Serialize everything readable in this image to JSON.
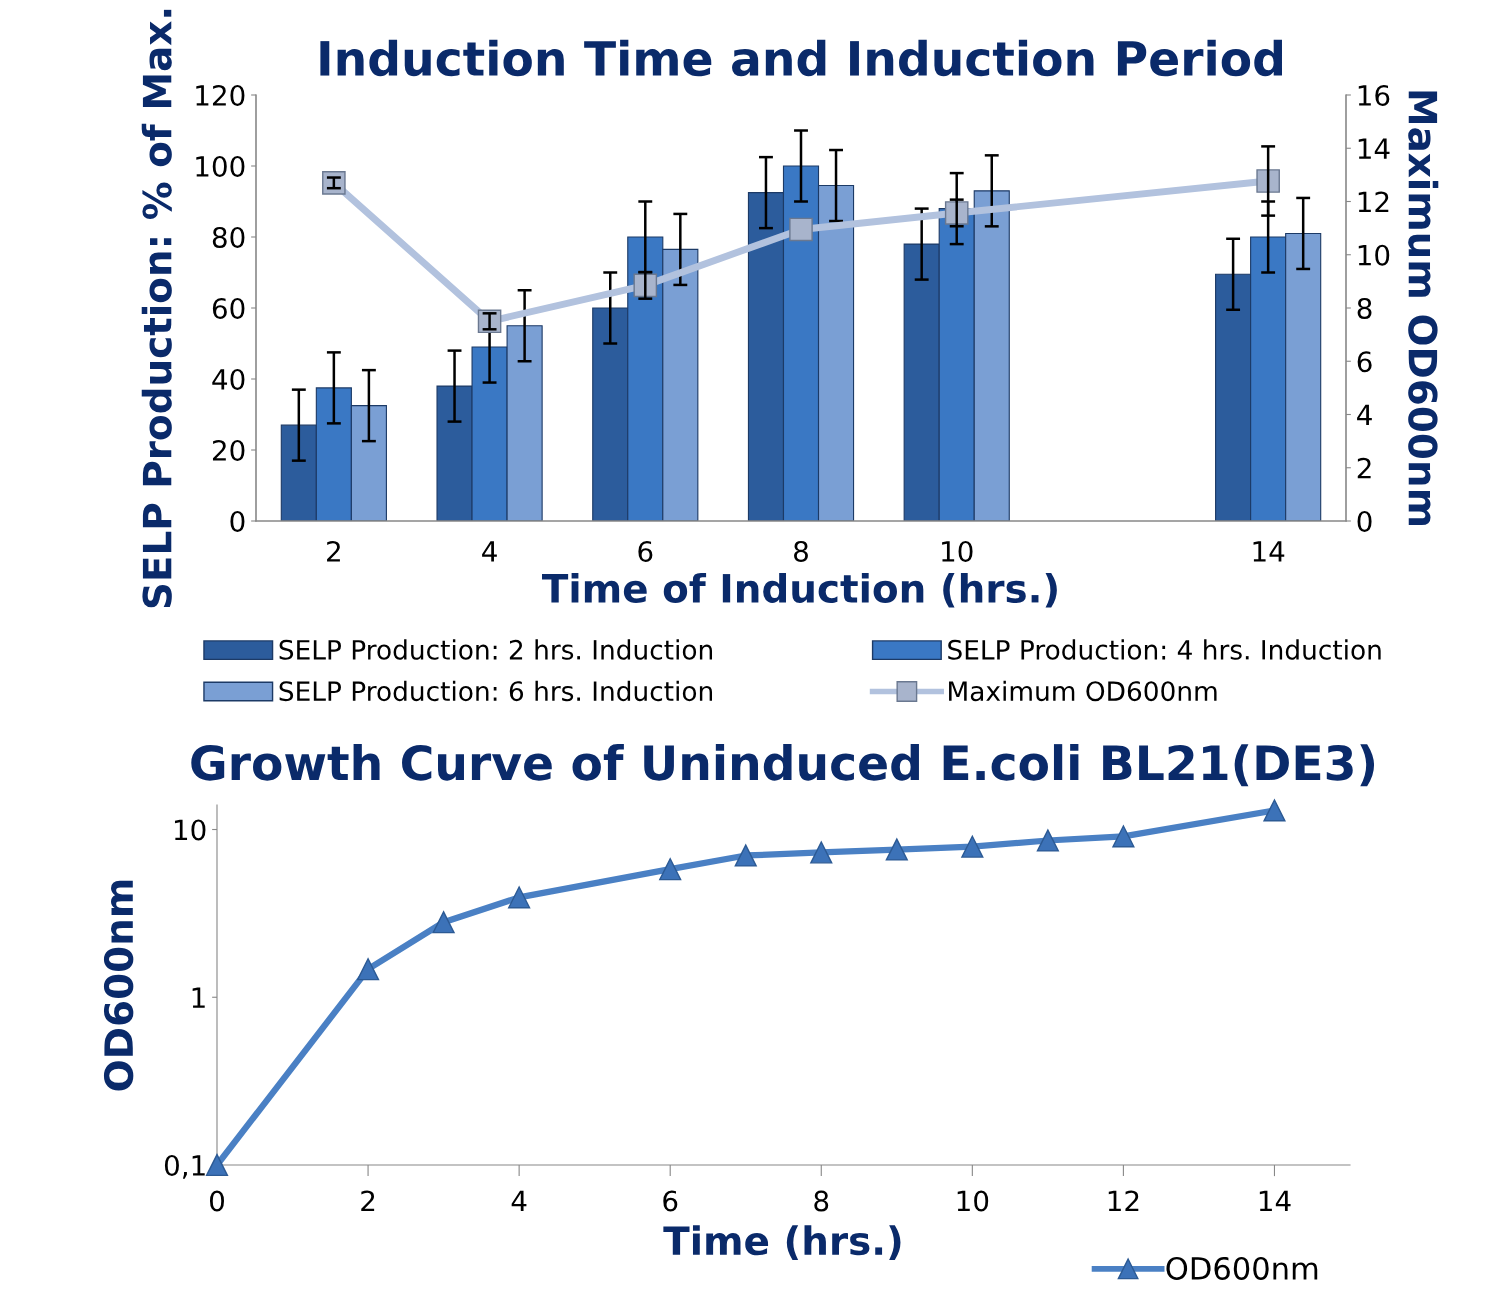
{
  "chart_data": [
    {
      "type": "bar",
      "title": "Induction Time and Induction Period",
      "xlabel": "Time of Induction (hrs.)",
      "ylabel": "SELP Production: % of Max.",
      "y2label": "Maximum OD600nm",
      "categories": [
        "2",
        "4",
        "6",
        "8",
        "10",
        null,
        "14"
      ],
      "ylim": [
        0,
        120
      ],
      "yticks": [
        0,
        20,
        40,
        60,
        80,
        100,
        120
      ],
      "y2lim": [
        0,
        16
      ],
      "y2ticks": [
        0,
        2,
        4,
        6,
        8,
        10,
        12,
        14,
        16
      ],
      "grid": false,
      "legend": "bottom",
      "series": [
        {
          "name": "SELP Production: 2 hrs. Induction",
          "color": "#2c5c9c",
          "values": [
            27,
            38,
            60,
            92.5,
            78,
            null,
            69.5
          ],
          "errors": [
            10,
            10,
            10,
            10,
            10,
            null,
            10
          ]
        },
        {
          "name": "SELP Production: 4 hrs. Induction",
          "color": "#3a78c4",
          "values": [
            37.5,
            49,
            80,
            100,
            88,
            null,
            80
          ],
          "errors": [
            10,
            10,
            10,
            10,
            10,
            null,
            10
          ]
        },
        {
          "name": "SELP Production: 6 hrs. Induction",
          "color": "#7a9fd4",
          "values": [
            32.5,
            55,
            76.5,
            94.5,
            93,
            null,
            81
          ],
          "errors": [
            10,
            10,
            10,
            10,
            10,
            null,
            10
          ]
        },
        {
          "name": "Maximum OD600nm",
          "type": "line",
          "axis": "y2",
          "marker": "square",
          "color": "#b2c2de",
          "values": [
            12.7,
            7.5,
            8.85,
            10.95,
            11.57,
            null,
            12.77
          ],
          "errors": [
            0.2,
            0.3,
            0.5,
            null,
            0.5,
            null,
            1.3
          ]
        }
      ]
    },
    {
      "type": "line",
      "title": "Growth Curve of Uninduced E.coli BL21(DE3)",
      "xlabel": "Time (hrs.)",
      "ylabel": "OD600nm",
      "x": [
        0,
        2,
        3,
        4,
        6,
        7,
        8,
        9,
        10,
        11,
        12,
        14
      ],
      "xlim": [
        0,
        15
      ],
      "xticks": [
        0,
        2,
        4,
        6,
        8,
        10,
        12,
        14
      ],
      "log": "y",
      "ylim": [
        0.1,
        14
      ],
      "yticks": [
        {
          "value": 0.1,
          "label": "0,1"
        },
        1,
        10
      ],
      "grid": false,
      "legend": "bottom right",
      "marker": "triangle",
      "series": [
        {
          "name": "OD600nm",
          "color": "#4a80c4",
          "values": [
            0.1,
            1.47,
            2.8,
            3.94,
            5.8,
            7.0,
            7.3,
            7.6,
            7.9,
            8.6,
            9.1,
            13.0
          ]
        }
      ]
    }
  ]
}
